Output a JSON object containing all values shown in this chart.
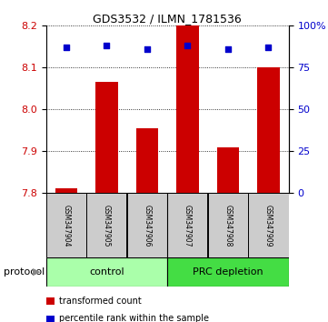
{
  "title": "GDS3532 / ILMN_1781536",
  "samples": [
    "GSM347904",
    "GSM347905",
    "GSM347906",
    "GSM347907",
    "GSM347908",
    "GSM347909"
  ],
  "bar_values": [
    7.812,
    8.065,
    7.955,
    8.2,
    7.91,
    8.1
  ],
  "percentile_values": [
    87,
    88,
    86,
    88,
    86,
    87
  ],
  "bar_bottom": 7.8,
  "ylim_left": [
    7.8,
    8.2
  ],
  "ylim_right": [
    0,
    100
  ],
  "yticks_left": [
    7.8,
    7.9,
    8.0,
    8.1,
    8.2
  ],
  "yticks_right": [
    0,
    25,
    50,
    75,
    100
  ],
  "ytick_labels_right": [
    "0",
    "25",
    "50",
    "75",
    "100%"
  ],
  "bar_color": "#cc0000",
  "dot_color": "#0000cc",
  "groups": [
    {
      "label": "control",
      "start": 0,
      "end": 3,
      "color": "#aaffaa"
    },
    {
      "label": "PRC depletion",
      "start": 3,
      "end": 6,
      "color": "#44dd44"
    }
  ],
  "legend_items": [
    {
      "color": "#cc0000",
      "label": "transformed count"
    },
    {
      "color": "#0000cc",
      "label": "percentile rank within the sample"
    }
  ],
  "protocol_label": "protocol",
  "bar_width": 0.55,
  "tick_label_color_left": "#cc0000",
  "tick_label_color_right": "#0000cc",
  "bgcolor_plot": "#ffffff",
  "sample_box_color": "#cccccc",
  "title_fontsize": 9,
  "tick_fontsize": 8,
  "sample_fontsize": 5.5,
  "legend_fontsize": 7,
  "protocol_fontsize": 8
}
